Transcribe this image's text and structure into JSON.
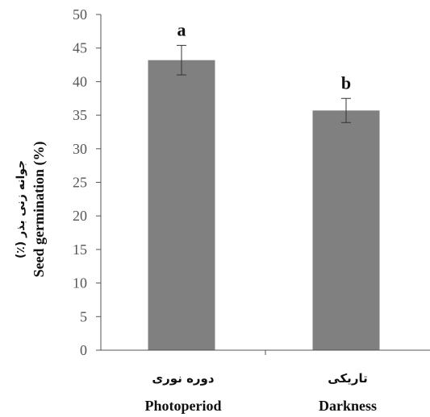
{
  "chart_data": {
    "type": "bar",
    "categories": [
      {
        "label_fa": "دوره نوری",
        "label_en": "Photoperiod"
      },
      {
        "label_fa": "تاریکی",
        "label_en": "Darkness"
      }
    ],
    "values": [
      43.2,
      35.7
    ],
    "errors": [
      2.2,
      1.8
    ],
    "significance_letters": [
      "a",
      "b"
    ],
    "ylabel_fa": "جوانه زنی بذر (٪)",
    "ylabel_en": "Seed germination  (%)",
    "ylim": [
      0,
      50
    ],
    "yticks": [
      0,
      5,
      10,
      15,
      20,
      25,
      30,
      35,
      40,
      45,
      50
    ],
    "grid": false,
    "colors": {
      "bar": "#808080",
      "axis": "#555555",
      "error_bar": "#333333"
    }
  }
}
